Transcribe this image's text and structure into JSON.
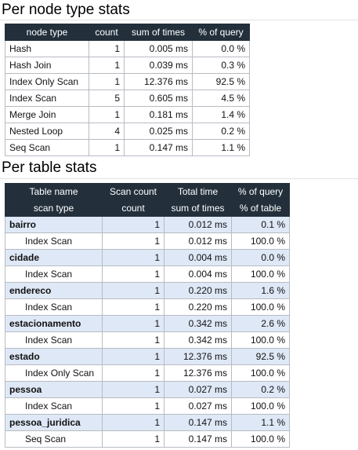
{
  "node_section": {
    "title": "Per node type stats",
    "headers": [
      "node type",
      "count",
      "sum of times",
      "% of query"
    ],
    "rows": [
      {
        "name": "Hash",
        "count": "1",
        "time": "0.005 ms",
        "pct": "0.0 %"
      },
      {
        "name": "Hash Join",
        "count": "1",
        "time": "0.039 ms",
        "pct": "0.3 %"
      },
      {
        "name": "Index Only Scan",
        "count": "1",
        "time": "12.376 ms",
        "pct": "92.5 %"
      },
      {
        "name": "Index Scan",
        "count": "5",
        "time": "0.605 ms",
        "pct": "4.5 %"
      },
      {
        "name": "Merge Join",
        "count": "1",
        "time": "0.181 ms",
        "pct": "1.4 %"
      },
      {
        "name": "Nested Loop",
        "count": "4",
        "time": "0.025 ms",
        "pct": "0.2 %"
      },
      {
        "name": "Seq Scan",
        "count": "1",
        "time": "0.147 ms",
        "pct": "1.1 %"
      }
    ]
  },
  "table_section": {
    "title": "Per table stats",
    "headers1": [
      "Table name",
      "Scan count",
      "Total time",
      "% of query"
    ],
    "headers2": [
      "scan type",
      "count",
      "sum of times",
      "% of table"
    ],
    "groups": [
      {
        "name": "bairro",
        "count": "1",
        "time": "0.012 ms",
        "pct": "0.1 %",
        "scans": [
          {
            "name": "Index Scan",
            "count": "1",
            "time": "0.012 ms",
            "pct": "100.0 %"
          }
        ]
      },
      {
        "name": "cidade",
        "count": "1",
        "time": "0.004 ms",
        "pct": "0.0 %",
        "scans": [
          {
            "name": "Index Scan",
            "count": "1",
            "time": "0.004 ms",
            "pct": "100.0 %"
          }
        ]
      },
      {
        "name": "endereco",
        "count": "1",
        "time": "0.220 ms",
        "pct": "1.6 %",
        "scans": [
          {
            "name": "Index Scan",
            "count": "1",
            "time": "0.220 ms",
            "pct": "100.0 %"
          }
        ]
      },
      {
        "name": "estacionamento",
        "count": "1",
        "time": "0.342 ms",
        "pct": "2.6 %",
        "scans": [
          {
            "name": "Index Scan",
            "count": "1",
            "time": "0.342 ms",
            "pct": "100.0 %"
          }
        ]
      },
      {
        "name": "estado",
        "count": "1",
        "time": "12.376 ms",
        "pct": "92.5 %",
        "scans": [
          {
            "name": "Index Only Scan",
            "count": "1",
            "time": "12.376 ms",
            "pct": "100.0 %"
          }
        ]
      },
      {
        "name": "pessoa",
        "count": "1",
        "time": "0.027 ms",
        "pct": "0.2 %",
        "scans": [
          {
            "name": "Index Scan",
            "count": "1",
            "time": "0.027 ms",
            "pct": "100.0 %"
          }
        ]
      },
      {
        "name": "pessoa_juridica",
        "count": "1",
        "time": "0.147 ms",
        "pct": "1.1 %",
        "scans": [
          {
            "name": "Seq Scan",
            "count": "1",
            "time": "0.147 ms",
            "pct": "100.0 %"
          }
        ]
      }
    ]
  }
}
